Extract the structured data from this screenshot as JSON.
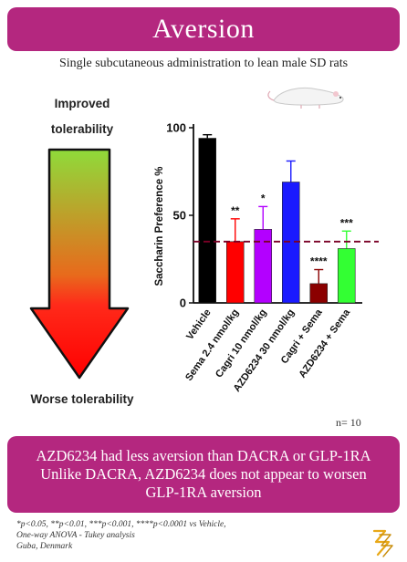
{
  "header": {
    "title": "Aversion"
  },
  "subtitle": "Single subcutaneous administration to lean male SD rats",
  "scale": {
    "top_label": "Improved tolerability",
    "bottom_label": "Worse tolerability",
    "colors": [
      "#8fdb3a",
      "#ff2a1a",
      "#ff0000"
    ]
  },
  "chart_data": {
    "type": "bar",
    "ylabel": "Saccharin Preference %",
    "ylim": [
      0,
      100
    ],
    "yticks": [
      0,
      50,
      100
    ],
    "categories": [
      "Vehicle",
      "Sema 2.4 nmol/kg",
      "Cagri 10 nmol/kg",
      "AZD6234 30 nmol/kg",
      "Cagri + Sema",
      "AZD6234 + Sema"
    ],
    "values": [
      94,
      35,
      42,
      69,
      11,
      31
    ],
    "errors": [
      2,
      13,
      13,
      12,
      8,
      10
    ],
    "significance": [
      "",
      "**",
      "*",
      "",
      "****",
      "***"
    ],
    "colors": [
      "#000000",
      "#ff0000",
      "#b300ff",
      "#1a1aff",
      "#8b0000",
      "#33ff33"
    ],
    "reference_line": 35,
    "reference_line_color": "#7a0026",
    "n_label": "n= 10"
  },
  "conclusion": {
    "line1": "AZD6234 had less aversion than DACRA or GLP-1RA",
    "line2": "Unlike DACRA, AZD6234 does not appear to worsen",
    "line3": "GLP-1RA aversion"
  },
  "footnote": {
    "line1": "*p<0.05, **p<0.01, ***p<0.001, ****p<0.0001 vs Vehicle,",
    "line2": "One-way  ANOVA - Tukey analysis",
    "line3": "Guba, Denmark"
  }
}
